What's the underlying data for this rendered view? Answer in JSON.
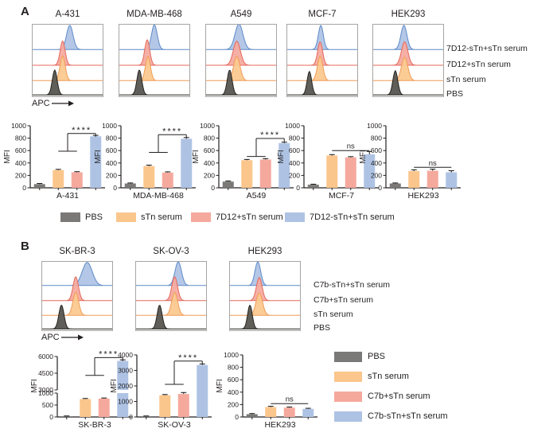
{
  "colors": {
    "bar_pbs": "#7a7977",
    "bar_stn": "#fbc68c",
    "bar_mid": "#f5a99d",
    "bar_top": "#aec3e4",
    "hist_top_fill": "#b0c4e6",
    "hist_top_stroke": "#5e8bc8",
    "hist_mid_fill": "#f5aba0",
    "hist_mid_stroke": "#e4695c",
    "hist_stn_fill": "#fbc98f",
    "hist_stn_stroke": "#f09c58",
    "hist_pbs_fill": "#57554f",
    "hist_pbs_stroke": "#26241f",
    "axis": "#231f20",
    "frame": "#a7a5a3",
    "error": "#141414"
  },
  "chart_data": {
    "type": "figure",
    "description": "Flow cytometry ridge histograms (APC) and MFI bar charts",
    "panels": [
      {
        "id": "A",
        "label": "A",
        "flow_axis_label": "APC",
        "ylabel": "MFI",
        "trace_labels": [
          "7D12-sTn+sTn serum",
          "7D12+sTn serum",
          "sTn serum",
          "PBS"
        ],
        "histograms": [
          {
            "title": "A-431",
            "peaks": [
              {
                "c": 0.53,
                "s": 0.045,
                "h": 0.33
              },
              {
                "c": 0.43,
                "s": 0.035,
                "h": 0.33
              },
              {
                "c": 0.43,
                "s": 0.036,
                "h": 0.34
              },
              {
                "c": 0.32,
                "s": 0.034,
                "h": 0.34
              }
            ]
          },
          {
            "title": "MDA-MB-468",
            "peaks": [
              {
                "c": 0.5,
                "s": 0.04,
                "h": 0.34
              },
              {
                "c": 0.4,
                "s": 0.035,
                "h": 0.35
              },
              {
                "c": 0.41,
                "s": 0.035,
                "h": 0.33
              },
              {
                "c": 0.29,
                "s": 0.034,
                "h": 0.34
              }
            ]
          },
          {
            "title": "A549",
            "peaks": [
              {
                "c": 0.47,
                "s": 0.055,
                "h": 0.35
              },
              {
                "c": 0.44,
                "s": 0.05,
                "h": 0.33
              },
              {
                "c": 0.44,
                "s": 0.045,
                "h": 0.33
              },
              {
                "c": 0.34,
                "s": 0.034,
                "h": 0.34
              }
            ]
          },
          {
            "title": "MCF-7",
            "peaks": [
              {
                "c": 0.48,
                "s": 0.035,
                "h": 0.33
              },
              {
                "c": 0.47,
                "s": 0.035,
                "h": 0.32
              },
              {
                "c": 0.47,
                "s": 0.038,
                "h": 0.33
              },
              {
                "c": 0.32,
                "s": 0.032,
                "h": 0.32
              }
            ]
          },
          {
            "title": "HEK293",
            "peaks": [
              {
                "c": 0.44,
                "s": 0.042,
                "h": 0.33
              },
              {
                "c": 0.45,
                "s": 0.045,
                "h": 0.32
              },
              {
                "c": 0.45,
                "s": 0.045,
                "h": 0.32
              },
              {
                "c": 0.32,
                "s": 0.034,
                "h": 0.33
              }
            ]
          }
        ],
        "bar_series": [
          "PBS",
          "sTn serum",
          "7D12+sTn serum",
          "7D12-sTn+sTn serum"
        ],
        "bar_charts": [
          {
            "cell_line": "A-431",
            "ylim": [
              0,
              1000
            ],
            "yticks": [
              0,
              200,
              400,
              600,
              800,
              1000
            ],
            "values": [
              60,
              285,
              250,
              830
            ],
            "errors": [
              10,
              12,
              10,
              15
            ],
            "sig": {
              "label": "****",
              "pool_y": 590,
              "top_y": 875
            }
          },
          {
            "cell_line": "MDA-MB-468",
            "ylim": [
              0,
              1000
            ],
            "yticks": [
              0,
              200,
              400,
              600,
              800,
              1000
            ],
            "values": [
              70,
              350,
              245,
              790
            ],
            "errors": [
              8,
              15,
              12,
              20
            ],
            "sig": {
              "label": "****",
              "pool_y": 570,
              "top_y": 855
            }
          },
          {
            "cell_line": "A549",
            "ylim": [
              0,
              1000
            ],
            "yticks": [
              0,
              200,
              400,
              600,
              800,
              1000
            ],
            "values": [
              100,
              445,
              455,
              720
            ],
            "errors": [
              10,
              12,
              15,
              15
            ],
            "sig": {
              "label": "****",
              "pool_y": 505,
              "top_y": 795
            }
          },
          {
            "cell_line": "MCF-7",
            "ylim": [
              0,
              1000
            ],
            "yticks": [
              0,
              200,
              400,
              600,
              800,
              1000
            ],
            "values": [
              50,
              520,
              490,
              540
            ],
            "errors": [
              8,
              15,
              12,
              45
            ],
            "sig": {
              "label": "ns",
              "line_y": 600
            }
          },
          {
            "cell_line": "HEK293",
            "ylim": [
              0,
              1000
            ],
            "yticks": [
              0,
              200,
              400,
              600,
              800,
              1000
            ],
            "values": [
              70,
              270,
              275,
              250
            ],
            "errors": [
              8,
              20,
              25,
              25
            ],
            "sig": {
              "label": "ns",
              "line_y": 330
            }
          }
        ],
        "legend": {
          "orientation": "horizontal",
          "entries": [
            "PBS",
            "sTn serum",
            "7D12+sTn serum",
            "7D12-sTn+sTn serum"
          ]
        }
      },
      {
        "id": "B",
        "label": "B",
        "flow_axis_label": "APC",
        "ylabel": "MFI",
        "trace_labels": [
          "C7b-sTn+sTn serum",
          "C7b+sTn serum",
          "sTn serum",
          "PBS"
        ],
        "histograms": [
          {
            "title": "SK-BR-3",
            "peaks": [
              {
                "c": 0.64,
                "s": 0.07,
                "h": 0.33
              },
              {
                "c": 0.48,
                "s": 0.038,
                "h": 0.34
              },
              {
                "c": 0.48,
                "s": 0.04,
                "h": 0.33
              },
              {
                "c": 0.28,
                "s": 0.036,
                "h": 0.34
              }
            ]
          },
          {
            "title": "SK-OV-3",
            "peaks": [
              {
                "c": 0.6,
                "s": 0.045,
                "h": 0.34
              },
              {
                "c": 0.55,
                "s": 0.04,
                "h": 0.34
              },
              {
                "c": 0.55,
                "s": 0.042,
                "h": 0.33
              },
              {
                "c": 0.34,
                "s": 0.035,
                "h": 0.34
              }
            ]
          },
          {
            "title": "HEK293",
            "peaks": [
              {
                "c": 0.4,
                "s": 0.04,
                "h": 0.34
              },
              {
                "c": 0.42,
                "s": 0.04,
                "h": 0.33
              },
              {
                "c": 0.42,
                "s": 0.045,
                "h": 0.32
              },
              {
                "c": 0.29,
                "s": 0.033,
                "h": 0.34
              }
            ]
          }
        ],
        "bar_series": [
          "PBS",
          "sTn serum",
          "C7b+sTn serum",
          "C7b-sTn+sTn serum"
        ],
        "bar_charts": [
          {
            "cell_line": "SK-BR-3",
            "axis_break": {
              "lower_lim": [
                0,
                1000
              ],
              "lower_ticks": [
                0,
                500,
                1000
              ],
              "upper_lim": [
                3000,
                6000
              ],
              "upper_ticks": [
                3000,
                4500,
                6000
              ]
            },
            "values": [
              30,
              750,
              770,
              5600
            ],
            "errors": [
              12,
              25,
              25,
              100
            ],
            "sig": {
              "label": "****",
              "pool_y": 4300,
              "top_y": 5900
            }
          },
          {
            "cell_line": "SK-OV-3",
            "ylim": [
              0,
              4000
            ],
            "yticks": [
              0,
              1000,
              2000,
              3000,
              4000
            ],
            "values": [
              50,
              1400,
              1480,
              3350
            ],
            "errors": [
              15,
              45,
              95,
              70
            ],
            "sig": {
              "label": "****",
              "pool_y": 2100,
              "top_y": 3600
            }
          },
          {
            "cell_line": "HEK293",
            "ylim": [
              0,
              1000
            ],
            "yticks": [
              0,
              200,
              400,
              600,
              800,
              1000
            ],
            "values": [
              45,
              160,
              150,
              130
            ],
            "errors": [
              10,
              12,
              10,
              10
            ],
            "sig": {
              "label": "ns",
              "line_y": 215
            }
          }
        ],
        "legend": {
          "orientation": "vertical",
          "entries": [
            "PBS",
            "sTn serum",
            "C7b+sTn serum",
            "C7b-sTn+sTn serum"
          ]
        }
      }
    ]
  }
}
